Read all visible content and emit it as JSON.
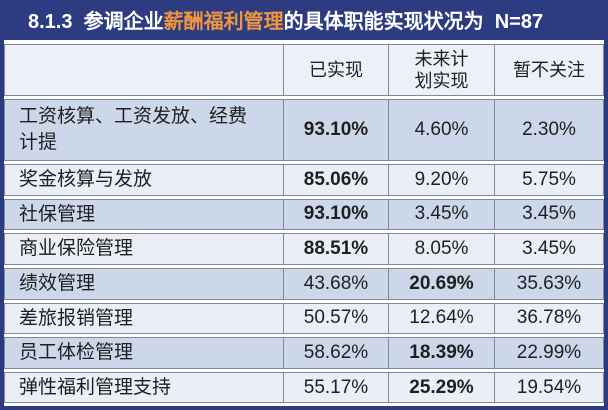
{
  "title": {
    "prefix": "8.1.3  参调企业",
    "highlight": "薪酬福利管理",
    "suffix": "的具体职能实现状况为  N=87"
  },
  "colors": {
    "navy": "#2d3c80",
    "orange": "#f0953f",
    "row_dark": "#cdd7ea",
    "row_light": "#e9eef7",
    "header_bg": "#edf0f8",
    "border": "#82879a",
    "text": "#1f1f1f"
  },
  "chart_data": {
    "type": "table",
    "title": "8.1.3 参调企业薪酬福利管理的具体职能实现状况为 N=87",
    "sample_size_label": "N=87",
    "columns": [
      "已实现",
      "未来计划实现",
      "暂不关注"
    ],
    "rows": [
      {
        "label": "工资核算、工资发放、经费计提",
        "values": [
          "93.10%",
          "4.60%",
          "2.30%"
        ],
        "emphasis": [
          true,
          false,
          false
        ]
      },
      {
        "label": "奖金核算与发放",
        "values": [
          "85.06%",
          "9.20%",
          "5.75%"
        ],
        "emphasis": [
          true,
          false,
          false
        ]
      },
      {
        "label": "社保管理",
        "values": [
          "93.10%",
          "3.45%",
          "3.45%"
        ],
        "emphasis": [
          true,
          false,
          false
        ]
      },
      {
        "label": "商业保险管理",
        "values": [
          "88.51%",
          "8.05%",
          "3.45%"
        ],
        "emphasis": [
          true,
          false,
          false
        ]
      },
      {
        "label": "绩效管理",
        "values": [
          "43.68%",
          "20.69%",
          "35.63%"
        ],
        "emphasis": [
          false,
          true,
          false
        ]
      },
      {
        "label": "差旅报销管理",
        "values": [
          "50.57%",
          "12.64%",
          "36.78%"
        ],
        "emphasis": [
          false,
          false,
          false
        ]
      },
      {
        "label": "员工体检管理",
        "values": [
          "58.62%",
          "18.39%",
          "22.99%"
        ],
        "emphasis": [
          false,
          true,
          false
        ]
      },
      {
        "label": "弹性福利管理支持",
        "values": [
          "55.17%",
          "25.29%",
          "19.54%"
        ],
        "emphasis": [
          false,
          true,
          false
        ]
      }
    ]
  }
}
